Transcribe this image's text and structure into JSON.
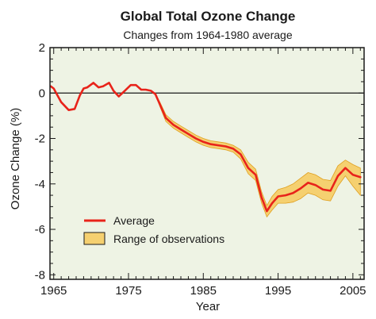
{
  "chart_data": {
    "type": "area",
    "title": "Global Total Ozone Change",
    "subtitle": "Changes from 1964-1980 average",
    "xlabel": "Year",
    "ylabel": "Ozone Change (%)",
    "xlim": [
      1964.5,
      2006.5
    ],
    "ylim": [
      -8.2,
      2
    ],
    "xticks": [
      1965,
      1975,
      1985,
      1995,
      2005
    ],
    "yticks": [
      2,
      0,
      -2,
      -4,
      -6,
      -8
    ],
    "grid": false,
    "legend_position": "lower-left",
    "background_color": "#eef3e4",
    "zero_line": true,
    "series": [
      {
        "name": "Average",
        "color": "#e8231a",
        "x": [
          1964.6,
          1965,
          1966,
          1967,
          1967.8,
          1968.5,
          1969,
          1969.5,
          1970.3,
          1971,
          1971.6,
          1972.4,
          1973,
          1973.7,
          1974.5,
          1975.3,
          1976,
          1976.7,
          1977.3,
          1978,
          1978.6,
          1979.2,
          1980,
          1981,
          1982,
          1983,
          1984,
          1985,
          1986,
          1987,
          1988,
          1989,
          1990,
          1991,
          1992,
          1992.8,
          1993.5,
          1994.2,
          1995,
          1996,
          1997,
          1998,
          1999,
          2000,
          2001,
          2002,
          2003,
          2004,
          2005,
          2006
        ],
        "values": [
          0.3,
          0.2,
          -0.4,
          -0.75,
          -0.7,
          -0.1,
          0.2,
          0.25,
          0.45,
          0.25,
          0.3,
          0.45,
          0.1,
          -0.15,
          0.1,
          0.35,
          0.35,
          0.15,
          0.15,
          0.1,
          -0.05,
          -0.5,
          -1.1,
          -1.4,
          -1.6,
          -1.8,
          -2.0,
          -2.15,
          -2.25,
          -2.3,
          -2.35,
          -2.45,
          -2.7,
          -3.3,
          -3.6,
          -4.6,
          -5.2,
          -4.85,
          -4.55,
          -4.5,
          -4.4,
          -4.2,
          -3.95,
          -4.05,
          -4.25,
          -4.3,
          -3.65,
          -3.3,
          -3.6,
          -3.7
        ]
      },
      {
        "name": "Range of observations",
        "color": "#f5d070",
        "stroke": "#e0a020",
        "x": [
          1964.6,
          1965,
          1966,
          1967,
          1967.8,
          1968.5,
          1969,
          1969.5,
          1970.3,
          1971,
          1971.6,
          1972.4,
          1973,
          1973.7,
          1974.5,
          1975.3,
          1976,
          1976.7,
          1977.3,
          1978,
          1978.6,
          1979.2,
          1980,
          1981,
          1982,
          1983,
          1984,
          1985,
          1986,
          1987,
          1988,
          1989,
          1990,
          1991,
          1992,
          1992.8,
          1993.5,
          1994.2,
          1995,
          1996,
          1997,
          1998,
          1999,
          2000,
          2001,
          2002,
          2003,
          2004,
          2005,
          2006
        ],
        "upper": [
          0.3,
          0.2,
          -0.4,
          -0.75,
          -0.7,
          -0.1,
          0.2,
          0.25,
          0.45,
          0.25,
          0.3,
          0.45,
          0.1,
          -0.15,
          0.1,
          0.35,
          0.35,
          0.15,
          0.15,
          0.1,
          -0.05,
          -0.4,
          -0.95,
          -1.25,
          -1.45,
          -1.65,
          -1.85,
          -2.0,
          -2.1,
          -2.15,
          -2.2,
          -2.3,
          -2.5,
          -3.05,
          -3.35,
          -4.35,
          -4.95,
          -4.55,
          -4.25,
          -4.15,
          -4.0,
          -3.75,
          -3.5,
          -3.6,
          -3.8,
          -3.85,
          -3.2,
          -2.95,
          -3.15,
          -3.3
        ],
        "lower": [
          0.3,
          0.2,
          -0.4,
          -0.75,
          -0.7,
          -0.1,
          0.2,
          0.25,
          0.45,
          0.25,
          0.3,
          0.45,
          0.1,
          -0.15,
          0.1,
          0.35,
          0.35,
          0.15,
          0.15,
          0.1,
          -0.05,
          -0.6,
          -1.25,
          -1.55,
          -1.75,
          -1.95,
          -2.15,
          -2.3,
          -2.4,
          -2.45,
          -2.5,
          -2.6,
          -2.9,
          -3.55,
          -3.85,
          -4.85,
          -5.45,
          -5.15,
          -4.85,
          -4.85,
          -4.8,
          -4.65,
          -4.4,
          -4.5,
          -4.7,
          -4.75,
          -4.1,
          -3.65,
          -4.1,
          -4.5
        ]
      }
    ]
  }
}
